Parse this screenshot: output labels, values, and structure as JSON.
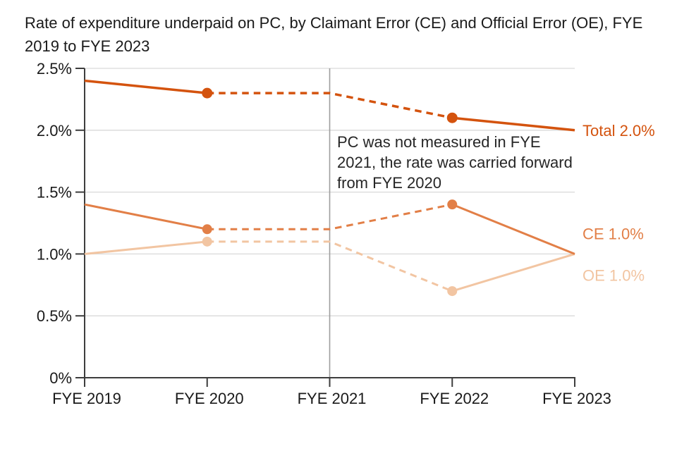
{
  "title": "Rate of expenditure underpaid on PC, by Claimant Error (CE) and Official Error (OE), FYE 2019 to FYE 2023",
  "annotation": {
    "text": "PC was not measured in FYE 2021, the rate was carried forward from FYE 2020"
  },
  "chart_data": {
    "type": "line",
    "categories": [
      "FYE 2019",
      "FYE 2020",
      "FYE 2021",
      "FYE 2022",
      "FYE 2023"
    ],
    "series": [
      {
        "name": "Total",
        "values": [
          2.4,
          2.3,
          2.3,
          2.1,
          2.0
        ],
        "color": "#d4530e",
        "end_label": "Total 2.0%",
        "line_width": 3.5,
        "marker_radius": 7.5,
        "label_dy": 0
      },
      {
        "name": "CE",
        "values": [
          1.4,
          1.2,
          1.2,
          1.4,
          1.0
        ],
        "color": "#e27f47",
        "end_label": "CE 1.0%",
        "line_width": 3,
        "marker_radius": 7,
        "label_dy": -29
      },
      {
        "name": "OE",
        "values": [
          1.0,
          1.1,
          1.1,
          0.7,
          1.0
        ],
        "color": "#f2c5a2",
        "end_label": "OE 1.0%",
        "line_width": 3,
        "marker_radius": 7,
        "label_dy": 30
      }
    ],
    "dashed_segment": {
      "from_index": 1,
      "to_index": 3,
      "note": "Lines are dashed between FYE 2020 and FYE 2022 because PC was not measured in FYE 2021; circular markers sit at FYE 2020 and FYE 2022"
    },
    "ylim": [
      0,
      2.5
    ],
    "yticks": [
      0,
      0.5,
      1.0,
      1.5,
      2.0,
      2.5
    ],
    "ytick_labels": [
      "0%",
      "0.5%",
      "1.0%",
      "1.5%",
      "2.0%",
      "2.5%"
    ],
    "grid": "horizontal",
    "legend_position": "right-of-line-ends",
    "vertical_reference_line": {
      "at_category": "FYE 2021",
      "color": "#9d9d9d"
    },
    "colors": {
      "grid": "#d9d9d9",
      "axis": "#3d3d3d",
      "tick_text": "#1a1a1a"
    },
    "xlabel": "",
    "ylabel": ""
  }
}
